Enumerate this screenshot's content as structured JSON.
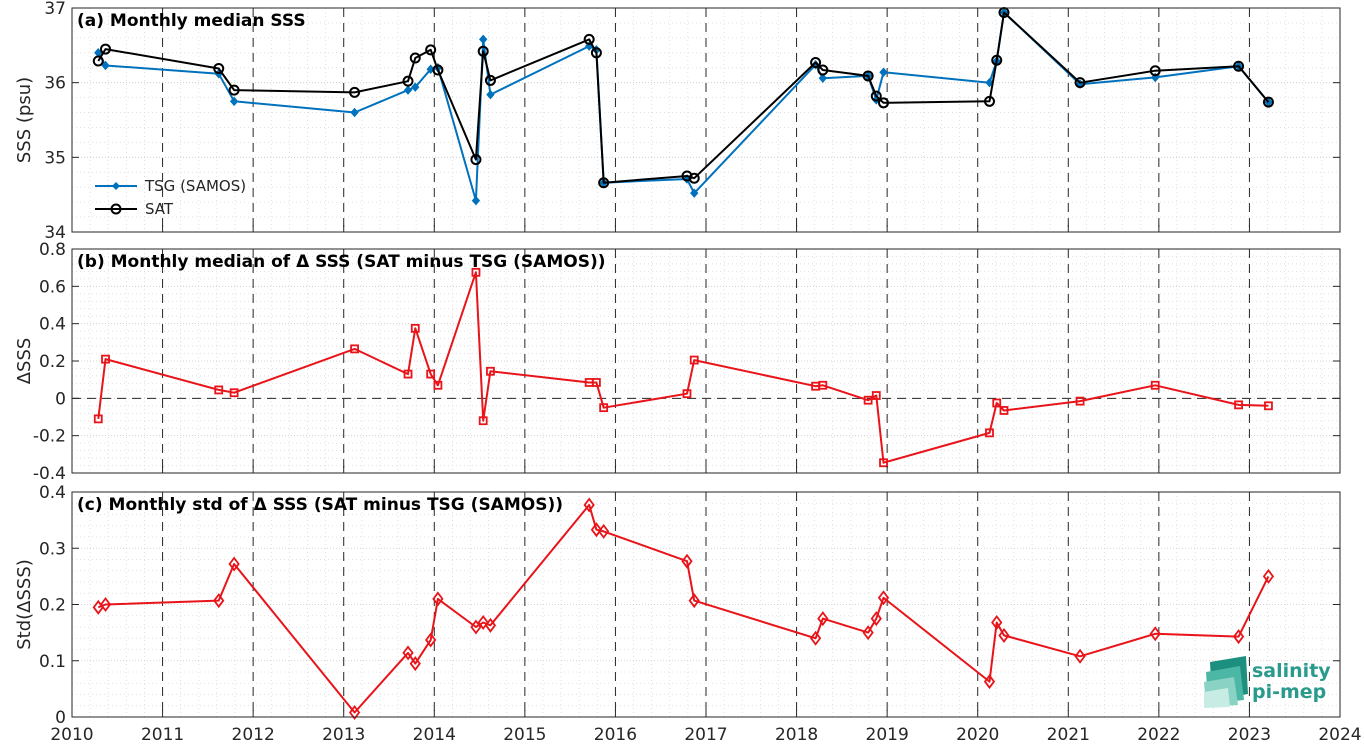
{
  "colors": {
    "tsg": "#0072BD",
    "sat": "#000000",
    "delta": "#E8141A",
    "logo": "#2a9a8c"
  },
  "logo": {
    "line1": "salinity",
    "line2": "pi-mep"
  },
  "x_axis": {
    "range": [
      2010,
      2024
    ],
    "ticks": [
      2010,
      2011,
      2012,
      2013,
      2014,
      2015,
      2016,
      2017,
      2018,
      2019,
      2020,
      2021,
      2022,
      2023,
      2024
    ],
    "tick_labels": [
      "2010",
      "2011",
      "2012",
      "2013",
      "2014",
      "2015",
      "2016",
      "2017",
      "2018",
      "2019",
      "2020",
      "2021",
      "2022",
      "2023",
      "2024"
    ]
  },
  "chart_data": [
    {
      "type": "line",
      "title": "(a) Monthly median SSS",
      "xlabel": "",
      "ylabel": "SSS (psu)",
      "ylim": [
        34,
        37
      ],
      "yticks": [
        34,
        35,
        36,
        37
      ],
      "ytick_labels": [
        "34",
        "35",
        "36",
        "37"
      ],
      "grid": true,
      "legend_position": "bottom-left",
      "series": [
        {
          "name": "TSG (SAMOS)",
          "marker": "diamond-filled",
          "color": "#0072BD",
          "x": [
            2010.29,
            2010.37,
            2011.62,
            2011.79,
            2013.12,
            2013.71,
            2013.79,
            2013.96,
            2014.04,
            2014.46,
            2014.54,
            2014.62,
            2015.71,
            2015.79,
            2015.87,
            2016.79,
            2016.87,
            2018.21,
            2018.29,
            2018.79,
            2018.88,
            2018.96,
            2020.13,
            2020.21,
            2020.29,
            2021.13,
            2021.96,
            2022.88,
            2023.21
          ],
          "y": [
            36.4,
            36.23,
            36.12,
            35.75,
            35.6,
            35.9,
            35.94,
            36.18,
            36.2,
            34.42,
            36.58,
            35.84,
            36.49,
            36.44,
            34.66,
            34.71,
            34.52,
            36.24,
            36.06,
            36.09,
            35.77,
            36.14,
            36.0,
            36.29,
            36.94,
            35.98,
            36.07,
            36.22,
            35.74
          ]
        },
        {
          "name": "SAT",
          "marker": "circle-open",
          "color": "#000000",
          "x": [
            2010.29,
            2010.37,
            2011.62,
            2011.79,
            2013.12,
            2013.71,
            2013.79,
            2013.96,
            2014.04,
            2014.46,
            2014.54,
            2014.62,
            2015.71,
            2015.79,
            2015.87,
            2016.79,
            2016.87,
            2018.21,
            2018.29,
            2018.79,
            2018.88,
            2018.96,
            2020.13,
            2020.21,
            2020.29,
            2021.13,
            2021.96,
            2022.88,
            2023.21
          ],
          "y": [
            36.29,
            36.45,
            36.19,
            35.9,
            35.87,
            36.02,
            36.33,
            36.44,
            36.17,
            34.97,
            36.42,
            36.03,
            36.58,
            36.4,
            34.66,
            34.75,
            34.72,
            36.27,
            36.17,
            36.09,
            35.82,
            35.73,
            35.75,
            36.3,
            36.94,
            36.0,
            36.16,
            36.22,
            35.74
          ]
        }
      ]
    },
    {
      "type": "line",
      "title": "(b) Monthly median of Δ SSS (SAT minus TSG (SAMOS))",
      "xlabel": "",
      "ylabel": "ΔSSS",
      "ylim": [
        -0.4,
        0.8
      ],
      "yticks": [
        -0.4,
        -0.2,
        0,
        0.2,
        0.4,
        0.6,
        0.8
      ],
      "ytick_labels": [
        "-0.4",
        "-0.2",
        "0",
        "0.2",
        "0.4",
        "0.6",
        "0.8"
      ],
      "grid": true,
      "reference_line": {
        "y": 0,
        "style": "dashed"
      },
      "series": [
        {
          "marker": "square-open",
          "color": "#E8141A",
          "x": [
            2010.29,
            2010.37,
            2011.62,
            2011.79,
            2013.12,
            2013.71,
            2013.79,
            2013.96,
            2014.04,
            2014.46,
            2014.54,
            2014.62,
            2015.71,
            2015.79,
            2015.87,
            2016.79,
            2016.87,
            2018.21,
            2018.29,
            2018.79,
            2018.88,
            2018.96,
            2020.13,
            2020.21,
            2020.29,
            2021.13,
            2021.96,
            2022.88,
            2023.21
          ],
          "y": [
            -0.11,
            0.21,
            0.045,
            0.03,
            0.265,
            0.13,
            0.375,
            0.13,
            0.07,
            0.675,
            -0.12,
            0.145,
            0.085,
            0.085,
            -0.05,
            0.025,
            0.205,
            0.065,
            0.07,
            -0.01,
            0.015,
            -0.345,
            -0.185,
            -0.025,
            -0.065,
            -0.015,
            0.07,
            -0.035,
            -0.04
          ]
        }
      ]
    },
    {
      "type": "line",
      "title": "(c) Monthly std of Δ SSS (SAT minus TSG (SAMOS))",
      "xlabel": "",
      "ylabel": "Std(ΔSSS)",
      "ylim": [
        0,
        0.4
      ],
      "yticks": [
        0,
        0.1,
        0.2,
        0.3,
        0.4
      ],
      "ytick_labels": [
        "0",
        "0.1",
        "0.2",
        "0.3",
        "0.4"
      ],
      "grid": true,
      "series": [
        {
          "marker": "diamond-open",
          "color": "#E8141A",
          "x": [
            2010.29,
            2010.37,
            2011.62,
            2011.79,
            2013.12,
            2013.71,
            2013.79,
            2013.96,
            2014.04,
            2014.46,
            2014.54,
            2014.62,
            2015.71,
            2015.79,
            2015.87,
            2016.79,
            2016.87,
            2018.21,
            2018.29,
            2018.79,
            2018.88,
            2018.96,
            2020.13,
            2020.21,
            2020.29,
            2021.13,
            2021.96,
            2022.88,
            2023.21
          ],
          "y": [
            0.195,
            0.2,
            0.207,
            0.272,
            0.008,
            0.114,
            0.095,
            0.137,
            0.21,
            0.16,
            0.168,
            0.163,
            0.377,
            0.333,
            0.33,
            0.277,
            0.207,
            0.14,
            0.175,
            0.15,
            0.175,
            0.212,
            0.063,
            0.168,
            0.145,
            0.108,
            0.148,
            0.143,
            0.25
          ]
        }
      ]
    }
  ]
}
